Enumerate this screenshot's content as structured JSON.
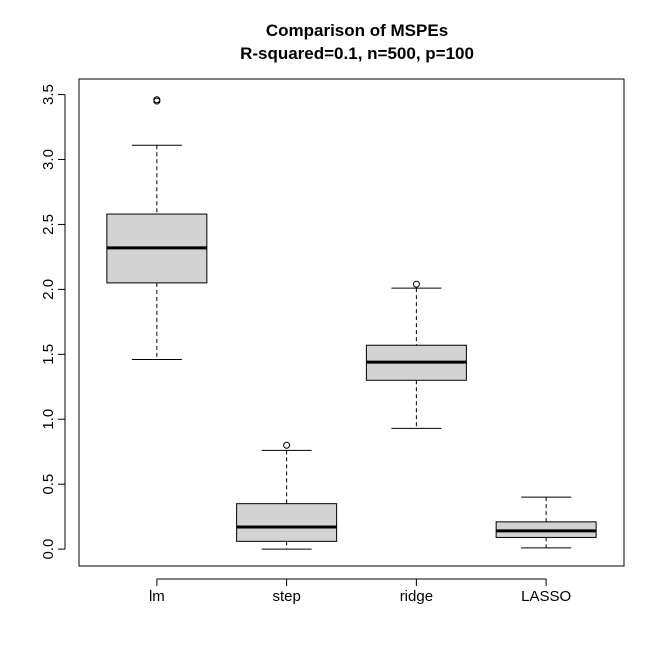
{
  "chart_data": {
    "type": "boxplot",
    "title": "Comparison of MSPEs",
    "subtitle": "R-squared=0.1, n=500, p=100",
    "xlabel": "",
    "ylabel": "",
    "ylim": [
      -0.13,
      3.62
    ],
    "y_ticks": [
      "0.0",
      "0.5",
      "1.0",
      "1.5",
      "2.0",
      "2.5",
      "3.0",
      "3.5"
    ],
    "y_tick_values": [
      0,
      0.5,
      1.0,
      1.5,
      2.0,
      2.5,
      3.0,
      3.5
    ],
    "categories": [
      "lm",
      "step",
      "ridge",
      "LASSO"
    ],
    "boxes": [
      {
        "name": "lm",
        "whisker_low": 1.46,
        "q1": 2.05,
        "median": 2.32,
        "q3": 2.58,
        "whisker_high": 3.11,
        "outliers": [
          3.45,
          3.46
        ]
      },
      {
        "name": "step",
        "whisker_low": 0.0,
        "q1": 0.06,
        "median": 0.17,
        "q3": 0.35,
        "whisker_high": 0.76,
        "outliers": [
          0.8
        ]
      },
      {
        "name": "ridge",
        "whisker_low": 0.93,
        "q1": 1.3,
        "median": 1.44,
        "q3": 1.57,
        "whisker_high": 2.01,
        "outliers": [
          2.04
        ]
      },
      {
        "name": "LASSO",
        "whisker_low": 0.01,
        "q1": 0.09,
        "median": 0.14,
        "q3": 0.21,
        "whisker_high": 0.4,
        "outliers": []
      }
    ],
    "box_fill": "#d3d3d3",
    "line_color": "#000000",
    "grid": false,
    "legend": "none"
  }
}
